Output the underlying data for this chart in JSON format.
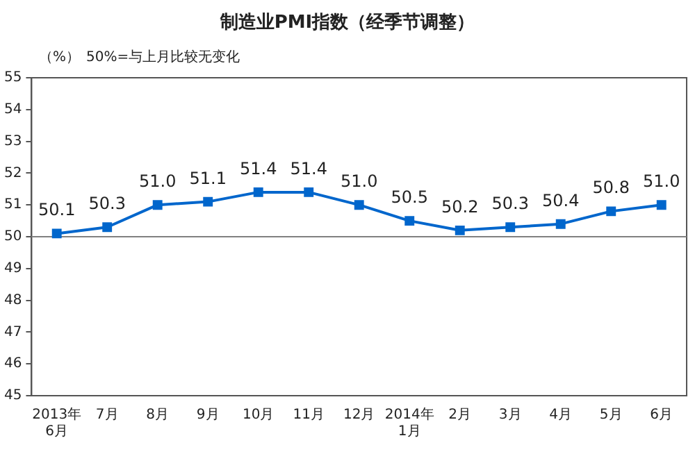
{
  "chart_data": {
    "type": "line",
    "title": "制造业PMI指数（经季节调整）",
    "ylabel": "（%）",
    "annotations": [
      "50%=与上月比较无变化"
    ],
    "categories": [
      "2013年\n6月",
      "7月",
      "8月",
      "9月",
      "10月",
      "11月",
      "12月",
      "2014年\n1月",
      "2月",
      "3月",
      "4月",
      "5月",
      "6月"
    ],
    "series": [
      {
        "color": "#0066cc",
        "values": [
          50.1,
          50.3,
          51.0,
          51.1,
          51.4,
          51.4,
          51.0,
          50.5,
          50.2,
          50.3,
          50.4,
          50.8,
          51.0
        ],
        "value_labels": [
          "50.1",
          "50.3",
          "51.0",
          "51.1",
          "51.4",
          "51.4",
          "51.0",
          "50.5",
          "50.2",
          "50.3",
          "50.4",
          "50.8",
          "51.0"
        ]
      }
    ],
    "ylim": [
      45,
      55
    ],
    "yticks": [
      45,
      46,
      47,
      48,
      49,
      50,
      51,
      52,
      53,
      54,
      55
    ],
    "ref_lines": [
      {
        "axis": "y",
        "value": 50,
        "color": "#808080"
      }
    ],
    "marker": "square",
    "line_style": "solid",
    "grid": false,
    "legend": false
  }
}
